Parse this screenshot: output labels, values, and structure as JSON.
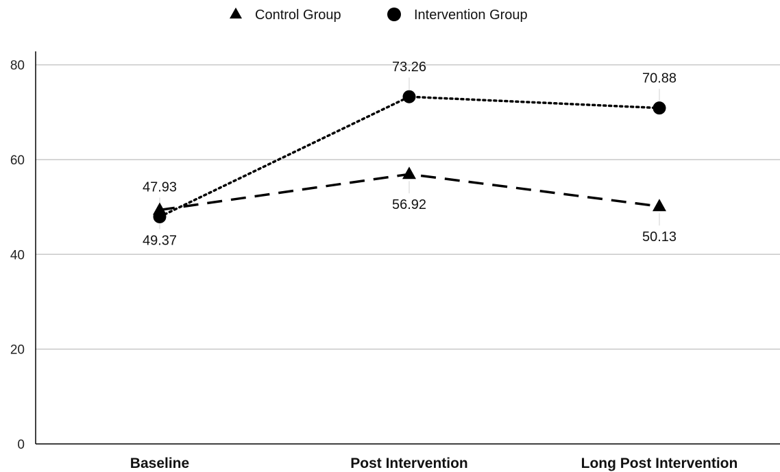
{
  "chart_data": {
    "type": "line",
    "title": "",
    "xlabel": "",
    "ylabel": "",
    "categories": [
      "Baseline",
      "Post Intervention",
      "Long Post Intervention"
    ],
    "ylim": [
      0,
      85
    ],
    "yticks": [
      0,
      20,
      40,
      60,
      80
    ],
    "grid": "horizontal",
    "legend": "top-center",
    "series": [
      {
        "name": "Control Group",
        "values": [
          49.37,
          56.92,
          50.13
        ],
        "marker": "triangle",
        "line_style": "dashed",
        "label_position": "below",
        "color": "#000000"
      },
      {
        "name": "Intervention Group",
        "values": [
          47.93,
          73.26,
          70.88
        ],
        "marker": "circle",
        "line_style": "dotted",
        "label_position": "above",
        "color": "#000000"
      }
    ],
    "colors": {
      "grid": "#c8c8c8",
      "axis": "#000000"
    }
  }
}
